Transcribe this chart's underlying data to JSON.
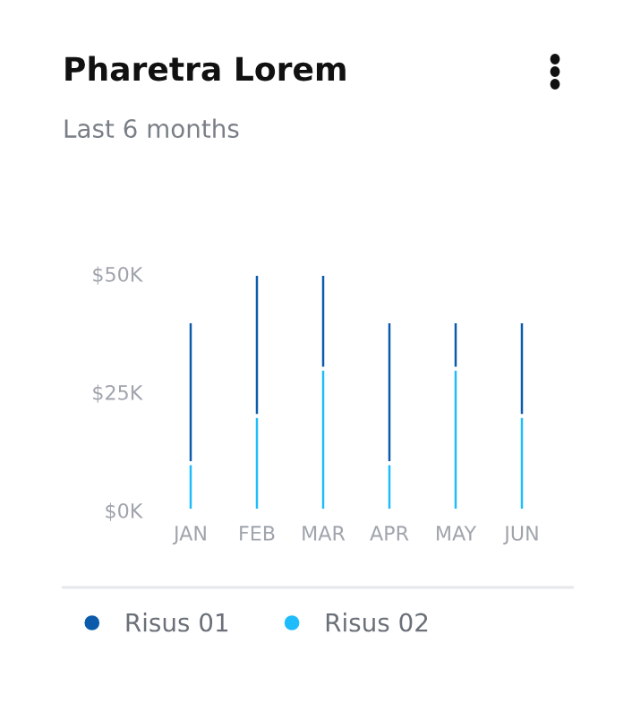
{
  "chart_data": {
    "type": "bar",
    "title": "Pharetra Lorem",
    "subtitle": "Last 6 months",
    "categories": [
      "JAN",
      "FEB",
      "MAR",
      "APR",
      "MAY",
      "JUN"
    ],
    "stacked": true,
    "series": [
      {
        "name": "Risus 02",
        "color": "#1fbcfb",
        "values": [
          10000,
          20000,
          30000,
          10000,
          30000,
          20000
        ]
      },
      {
        "name": "Risus 01",
        "color": "#0c5bab",
        "values": [
          30000,
          30000,
          20000,
          30000,
          10000,
          20000
        ]
      }
    ],
    "ylim": [
      0,
      50000
    ],
    "yticks": [
      {
        "value": 0,
        "label": "$0K"
      },
      {
        "value": 25000,
        "label": "$25K"
      },
      {
        "value": 50000,
        "label": "$50K"
      }
    ],
    "grid": false,
    "legend": "bottom"
  }
}
